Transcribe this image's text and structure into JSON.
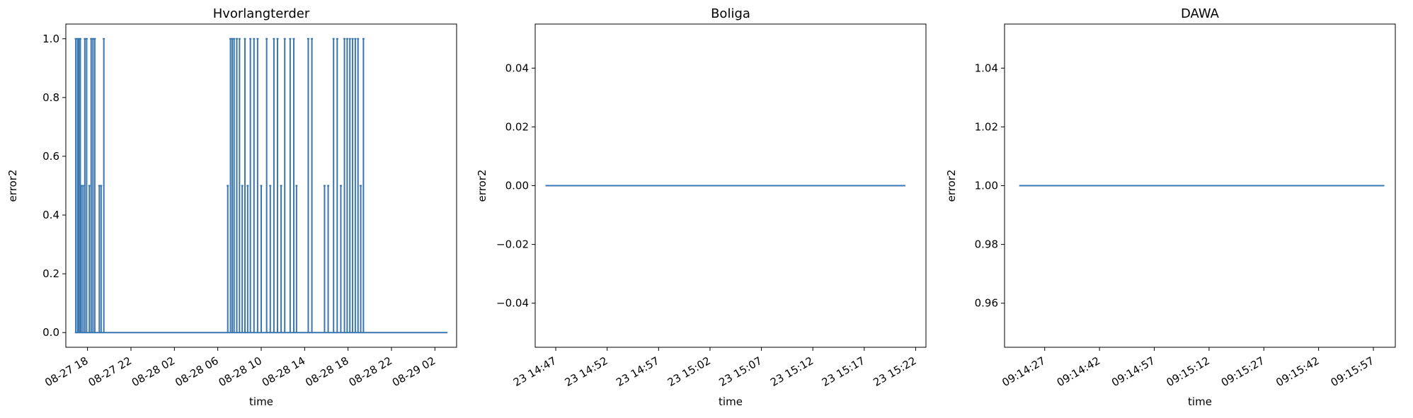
{
  "chart_data": [
    {
      "type": "line",
      "title": "Hvorlangterder",
      "xlabel": "time",
      "ylabel": "error2",
      "ylim": [
        -0.05,
        1.05
      ],
      "xlim": [
        "2018-08-27 16:00",
        "2018-08-29 04:00"
      ],
      "color": "#3a76af",
      "yticks": [
        "0.0",
        "0.2",
        "0.4",
        "0.6",
        "0.8",
        "1.0"
      ],
      "ytick_values": [
        0.0,
        0.2,
        0.4,
        0.6,
        0.8,
        1.0
      ],
      "xticks": [
        "08-27 18",
        "08-27 22",
        "08-28 02",
        "08-28 06",
        "08-28 10",
        "08-28 14",
        "08-28 18",
        "08-28 22",
        "08-29 02"
      ],
      "xtick_values": [
        "2018-08-27 18:00",
        "2018-08-27 22:00",
        "2018-08-28 02:00",
        "2018-08-28 06:00",
        "2018-08-28 10:00",
        "2018-08-28 14:00",
        "2018-08-28 18:00",
        "2018-08-28 22:00",
        "2018-08-29 02:00"
      ],
      "series": [
        {
          "spikes": [
            {
              "x": "2018-08-27 16:55",
              "y": 1.0
            },
            {
              "x": "2018-08-27 17:05",
              "y": 1.0
            },
            {
              "x": "2018-08-27 17:12",
              "y": 1.0
            },
            {
              "x": "2018-08-27 17:20",
              "y": 1.0
            },
            {
              "x": "2018-08-27 17:25",
              "y": 0.5
            },
            {
              "x": "2018-08-27 17:35",
              "y": 0.5
            },
            {
              "x": "2018-08-27 17:45",
              "y": 1.0
            },
            {
              "x": "2018-08-27 17:55",
              "y": 1.0
            },
            {
              "x": "2018-08-27 18:10",
              "y": 0.5
            },
            {
              "x": "2018-08-27 18:20",
              "y": 1.0
            },
            {
              "x": "2018-08-27 18:30",
              "y": 1.0
            },
            {
              "x": "2018-08-27 18:40",
              "y": 1.0
            },
            {
              "x": "2018-08-27 19:05",
              "y": 0.5
            },
            {
              "x": "2018-08-27 19:15",
              "y": 0.5
            },
            {
              "x": "2018-08-27 19:30",
              "y": 1.0
            },
            {
              "x": "2018-08-28 06:55",
              "y": 0.5
            },
            {
              "x": "2018-08-28 07:10",
              "y": 1.0
            },
            {
              "x": "2018-08-28 07:20",
              "y": 1.0
            },
            {
              "x": "2018-08-28 07:30",
              "y": 1.0
            },
            {
              "x": "2018-08-28 07:45",
              "y": 1.0
            },
            {
              "x": "2018-08-28 08:00",
              "y": 1.0
            },
            {
              "x": "2018-08-28 08:15",
              "y": 0.5
            },
            {
              "x": "2018-08-28 08:30",
              "y": 1.0
            },
            {
              "x": "2018-08-28 08:45",
              "y": 0.5
            },
            {
              "x": "2018-08-28 09:00",
              "y": 1.0
            },
            {
              "x": "2018-08-28 09:20",
              "y": 1.0
            },
            {
              "x": "2018-08-28 09:40",
              "y": 1.0
            },
            {
              "x": "2018-08-28 10:00",
              "y": 0.5
            },
            {
              "x": "2018-08-28 10:30",
              "y": 1.0
            },
            {
              "x": "2018-08-28 10:50",
              "y": 0.5
            },
            {
              "x": "2018-08-28 11:10",
              "y": 1.0
            },
            {
              "x": "2018-08-28 11:30",
              "y": 1.0
            },
            {
              "x": "2018-08-28 11:50",
              "y": 0.5
            },
            {
              "x": "2018-08-28 12:10",
              "y": 1.0
            },
            {
              "x": "2018-08-28 12:40",
              "y": 1.0
            },
            {
              "x": "2018-08-28 13:00",
              "y": 1.0
            },
            {
              "x": "2018-08-28 13:15",
              "y": 0.5
            },
            {
              "x": "2018-08-28 14:20",
              "y": 1.0
            },
            {
              "x": "2018-08-28 14:40",
              "y": 1.0
            },
            {
              "x": "2018-08-28 15:50",
              "y": 0.5
            },
            {
              "x": "2018-08-28 16:10",
              "y": 0.5
            },
            {
              "x": "2018-08-28 16:40",
              "y": 1.0
            },
            {
              "x": "2018-08-28 17:00",
              "y": 1.0
            },
            {
              "x": "2018-08-28 17:20",
              "y": 0.5
            },
            {
              "x": "2018-08-28 17:40",
              "y": 1.0
            },
            {
              "x": "2018-08-28 17:55",
              "y": 1.0
            },
            {
              "x": "2018-08-28 18:10",
              "y": 1.0
            },
            {
              "x": "2018-08-28 18:25",
              "y": 1.0
            },
            {
              "x": "2018-08-28 18:40",
              "y": 1.0
            },
            {
              "x": "2018-08-28 18:55",
              "y": 1.0
            },
            {
              "x": "2018-08-28 19:10",
              "y": 0.5
            },
            {
              "x": "2018-08-28 19:25",
              "y": 1.0
            }
          ],
          "baseline": 0.0,
          "range": [
            "2018-08-27 16:50",
            "2018-08-29 03:10"
          ]
        }
      ]
    },
    {
      "type": "line",
      "title": "Boliga",
      "xlabel": "time",
      "ylabel": "error2",
      "ylim": [
        -0.055,
        0.055
      ],
      "color": "#3a76af",
      "yticks": [
        "−0.04",
        "−0.02",
        "0.00",
        "0.02",
        "0.04"
      ],
      "ytick_values": [
        -0.04,
        -0.02,
        0.0,
        0.02,
        0.04
      ],
      "xticks": [
        "23 14:47",
        "23 14:52",
        "23 14:57",
        "23 15:02",
        "23 15:07",
        "23 15:12",
        "23 15:17",
        "23 15:22"
      ],
      "xtick_values": [
        "14:47",
        "14:52",
        "14:57",
        "15:02",
        "15:07",
        "15:12",
        "15:17",
        "15:22"
      ],
      "xlim": [
        "14:45",
        "15:23"
      ],
      "series": [
        {
          "x": [
            "14:46",
            "15:21"
          ],
          "y": [
            0.0,
            0.0
          ]
        }
      ]
    },
    {
      "type": "line",
      "title": "DAWA",
      "xlabel": "time",
      "ylabel": "error2",
      "ylim": [
        0.945,
        1.055
      ],
      "color": "#3a76af",
      "yticks": [
        "0.96",
        "0.98",
        "1.00",
        "1.02",
        "1.04"
      ],
      "ytick_values": [
        0.96,
        0.98,
        1.0,
        1.02,
        1.04
      ],
      "xticks": [
        "09:14:27",
        "09:14:42",
        "09:14:57",
        "09:15:12",
        "09:15:27",
        "09:15:42",
        "09:15:57"
      ],
      "xtick_values": [
        "09:14:27",
        "09:14:42",
        "09:14:57",
        "09:15:12",
        "09:15:27",
        "09:15:42",
        "09:15:57"
      ],
      "xlim": [
        "09:14:16",
        "09:16:03"
      ],
      "series": [
        {
          "x": [
            "09:14:20",
            "09:16:00"
          ],
          "y": [
            1.0,
            1.0
          ]
        }
      ]
    }
  ]
}
